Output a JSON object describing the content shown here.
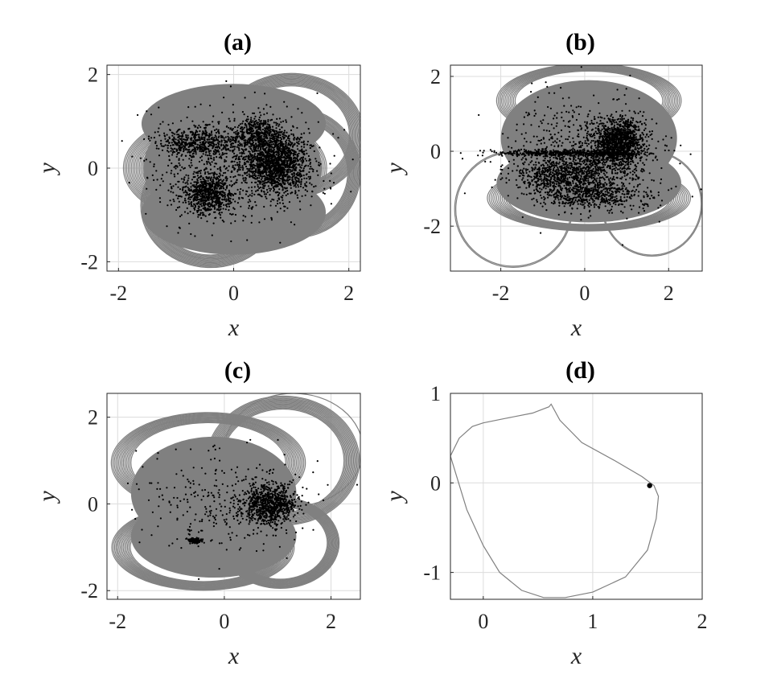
{
  "chart_data": [
    {
      "type": "scatter",
      "title": "(a)",
      "xlabel": "x",
      "ylabel": "y",
      "xlim": [
        -2.2,
        2.2
      ],
      "ylim": [
        -2.2,
        2.2
      ],
      "xticks": [
        -2,
        0,
        2
      ],
      "yticks": [
        -2,
        0,
        2
      ],
      "grid": true,
      "fill_color": "#808080",
      "point_color": "#000000",
      "regions": [
        {
          "cx": -0.02,
          "cy": 0.0,
          "rx": 1.55,
          "ry": 1.35
        },
        {
          "cx": 0.0,
          "cy": 0.95,
          "rx": 1.6,
          "ry": 0.85
        },
        {
          "cx": 0.0,
          "cy": -0.95,
          "rx": 1.6,
          "ry": 0.9
        }
      ],
      "curves": [
        {
          "start": [
            0.0,
            0.0
          ],
          "lobes": [
            [
              -0.15,
              0.0,
              1.6,
              1.1
            ],
            [
              1.0,
              0.7,
              1.15,
              1.2
            ],
            [
              -0.4,
              -0.8,
              1.1,
              1.2
            ],
            [
              1.1,
              -0.1,
              1.0,
              1.25
            ]
          ],
          "count": 14,
          "spread": 0.06
        }
      ],
      "clusters": [
        {
          "cx": 0.75,
          "cy": 0.1,
          "rx": 0.55,
          "ry": 0.6,
          "n": 1400
        },
        {
          "cx": 0.45,
          "cy": 0.7,
          "rx": 0.45,
          "ry": 0.4,
          "n": 500
        },
        {
          "cx": -0.45,
          "cy": -0.55,
          "rx": 0.45,
          "ry": 0.45,
          "n": 700
        },
        {
          "cx": -0.65,
          "cy": 0.55,
          "rx": 0.7,
          "ry": 0.3,
          "n": 500
        },
        {
          "cx": 0.0,
          "cy": 0.05,
          "rx": 1.5,
          "ry": 1.2,
          "n": 700
        }
      ]
    },
    {
      "type": "scatter",
      "title": "(b)",
      "xlabel": "x",
      "ylabel": "y",
      "xlim": [
        -3.2,
        2.8
      ],
      "ylim": [
        -3.2,
        2.3
      ],
      "xticks": [
        -2,
        0,
        2
      ],
      "yticks": [
        -2,
        0,
        2
      ],
      "grid": true,
      "fill_color": "#808080",
      "point_color": "#000000",
      "regions": [
        {
          "cx": 0.1,
          "cy": 0.35,
          "rx": 2.1,
          "ry": 1.55
        },
        {
          "cx": 0.1,
          "cy": -0.85,
          "rx": 2.2,
          "ry": 1.05
        }
      ],
      "curves": [
        {
          "start": [
            -3.0,
            0.0
          ],
          "lobes": [
            [
              -1.7,
              -1.55,
              1.4,
              1.55
            ],
            [
              1.6,
              -1.4,
              1.2,
              1.4
            ]
          ],
          "count": 2,
          "spread": 0.02
        },
        {
          "start": [
            0.0,
            0.0
          ],
          "lobes": [
            [
              0.1,
              1.35,
              2.0,
              0.9
            ],
            [
              0.1,
              -1.25,
              2.2,
              0.8
            ]
          ],
          "count": 12,
          "spread": 0.06
        }
      ],
      "clusters": [
        {
          "cx": 0.8,
          "cy": 0.2,
          "rx": 0.6,
          "ry": 0.65,
          "n": 1300
        },
        {
          "cx": -0.4,
          "cy": -0.6,
          "rx": 1.2,
          "ry": 0.55,
          "n": 900
        },
        {
          "cx": -0.5,
          "cy": -0.05,
          "rx": 1.7,
          "ry": 0.08,
          "n": 500
        },
        {
          "cx": 0.2,
          "cy": -1.2,
          "rx": 1.4,
          "ry": 0.35,
          "n": 500
        },
        {
          "cx": 0.0,
          "cy": 0.0,
          "rx": 1.8,
          "ry": 1.5,
          "n": 500
        }
      ]
    },
    {
      "type": "scatter",
      "title": "(c)",
      "xlabel": "x",
      "ylabel": "y",
      "xlim": [
        -2.2,
        2.55
      ],
      "ylim": [
        -2.2,
        2.55
      ],
      "xticks": [
        -2,
        0,
        2
      ],
      "yticks": [
        -2,
        0,
        2
      ],
      "grid": true,
      "fill_color": "#808080",
      "point_color": "#000000",
      "regions": [
        {
          "cx": -0.2,
          "cy": 0.25,
          "rx": 1.55,
          "ry": 1.3
        },
        {
          "cx": -0.2,
          "cy": -0.75,
          "rx": 1.55,
          "ry": 0.95
        }
      ],
      "curves": [
        {
          "start": [
            0.0,
            0.0
          ],
          "lobes": [
            [
              -0.3,
              0.95,
              1.65,
              1.05
            ],
            [
              1.1,
              1.0,
              1.3,
              1.35
            ],
            [
              -0.4,
              -1.0,
              1.55,
              0.9
            ],
            [
              1.05,
              -0.9,
              1.0,
              0.95
            ]
          ],
          "count": 14,
          "spread": 0.06
        },
        {
          "start": [
            0.0,
            0.0
          ],
          "lobes": [
            [
              1.3,
              1.25,
              1.3,
              1.3
            ]
          ],
          "count": 1,
          "spread": 0.0
        }
      ],
      "clusters": [
        {
          "cx": 0.85,
          "cy": 0.0,
          "rx": 0.5,
          "ry": 0.45,
          "n": 800
        },
        {
          "cx": -0.55,
          "cy": -0.85,
          "rx": 0.12,
          "ry": 0.05,
          "n": 200
        },
        {
          "cx": 0.0,
          "cy": 0.0,
          "rx": 1.5,
          "ry": 1.2,
          "n": 300
        }
      ]
    },
    {
      "type": "line",
      "title": "(d)",
      "xlabel": "x",
      "ylabel": "y",
      "xlim": [
        -0.3,
        2.0
      ],
      "ylim": [
        -1.3,
        1.0
      ],
      "xticks": [
        0,
        1,
        2
      ],
      "yticks": [
        -1,
        0,
        1
      ],
      "grid": true,
      "line_color": "#808080",
      "x": [
        -0.3,
        -0.22,
        -0.1,
        0.0,
        0.2,
        0.45,
        0.6,
        0.62,
        0.7,
        0.9,
        1.2,
        1.45,
        1.56,
        1.6,
        1.58,
        1.5,
        1.3,
        1.0,
        0.75,
        0.55,
        0.35,
        0.15,
        0.0,
        -0.15,
        -0.3
      ],
      "y": [
        0.3,
        0.5,
        0.63,
        0.67,
        0.72,
        0.78,
        0.85,
        0.88,
        0.7,
        0.45,
        0.25,
        0.07,
        -0.03,
        -0.15,
        -0.4,
        -0.75,
        -1.05,
        -1.22,
        -1.28,
        -1.28,
        -1.2,
        -1.0,
        -0.7,
        -0.3,
        0.3
      ],
      "marker": [
        1.52,
        -0.03
      ]
    }
  ]
}
